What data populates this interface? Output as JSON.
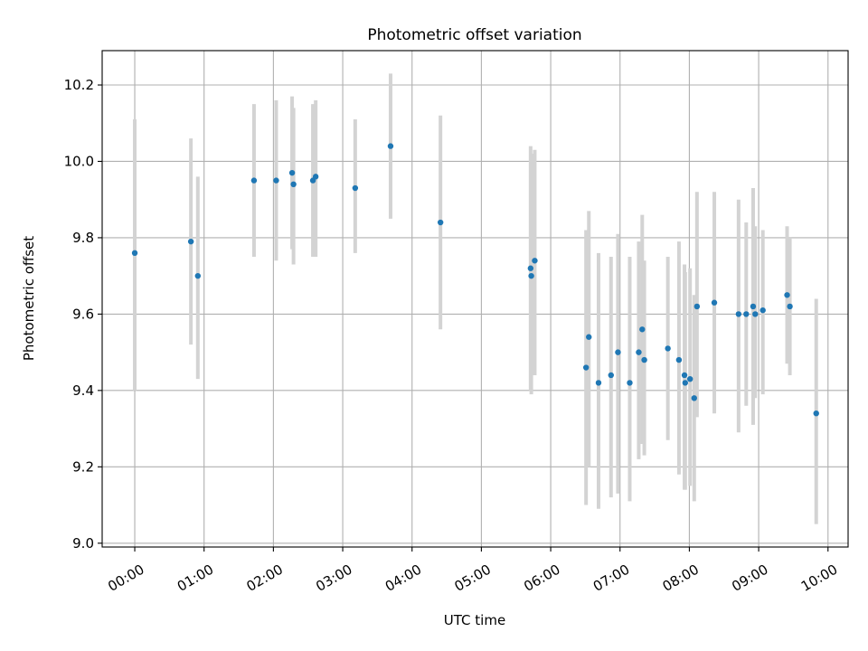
{
  "chart_data": {
    "type": "scatter",
    "title": "Photometric offset variation",
    "xlabel": "UTC time",
    "ylabel": "Photometric offset",
    "xlim": [
      -0.47,
      10.29
    ],
    "ylim": [
      8.99,
      10.29
    ],
    "grid": true,
    "x_ticks": [
      0,
      1,
      2,
      3,
      4,
      5,
      6,
      7,
      8,
      9,
      10
    ],
    "x_tick_labels": [
      "00:00",
      "01:00",
      "02:00",
      "03:00",
      "04:00",
      "05:00",
      "06:00",
      "07:00",
      "08:00",
      "09:00",
      "10:00"
    ],
    "y_ticks": [
      9.0,
      9.2,
      9.4,
      9.6,
      9.8,
      10.0,
      10.2
    ],
    "y_tick_labels": [
      "9.0",
      "9.2",
      "9.4",
      "9.6",
      "9.8",
      "10.0",
      "10.2"
    ],
    "marker_color": "#1f77b4",
    "errorbar_color": "#d3d3d3",
    "series": [
      {
        "x": [
          0.0,
          0.81,
          0.91,
          1.72,
          2.04,
          2.27,
          2.29,
          2.57,
          2.61,
          3.18,
          3.69,
          4.41,
          5.71,
          5.72,
          5.77,
          6.51,
          6.55,
          6.69,
          6.87,
          6.97,
          7.14,
          7.27,
          7.32,
          7.35,
          7.69,
          7.85,
          7.93,
          7.94,
          8.01,
          8.07,
          8.11,
          8.36,
          8.71,
          8.82,
          8.92,
          8.95,
          9.06,
          9.41,
          9.45,
          9.83
        ],
        "y": [
          9.76,
          9.79,
          9.7,
          9.95,
          9.95,
          9.97,
          9.94,
          9.95,
          9.96,
          9.93,
          10.04,
          9.84,
          9.72,
          9.7,
          9.74,
          9.46,
          9.54,
          9.42,
          9.44,
          9.5,
          9.42,
          9.5,
          9.56,
          9.48,
          9.51,
          9.48,
          9.44,
          9.42,
          9.43,
          9.38,
          9.62,
          9.63,
          9.6,
          9.6,
          9.62,
          9.6,
          9.61,
          9.65,
          9.62,
          9.34
        ],
        "y_low": [
          9.4,
          9.52,
          9.43,
          9.75,
          9.74,
          9.77,
          9.73,
          9.75,
          9.75,
          9.76,
          9.85,
          9.56,
          9.4,
          9.39,
          9.44,
          9.1,
          9.2,
          9.09,
          9.12,
          9.13,
          9.11,
          9.22,
          9.26,
          9.23,
          9.27,
          9.18,
          9.14,
          9.14,
          9.15,
          9.11,
          9.33,
          9.34,
          9.29,
          9.36,
          9.31,
          9.38,
          9.39,
          9.47,
          9.44,
          9.05
        ],
        "y_high": [
          10.11,
          10.06,
          9.96,
          10.15,
          10.16,
          10.17,
          10.14,
          10.15,
          10.16,
          10.11,
          10.23,
          10.12,
          10.04,
          10.02,
          10.03,
          9.82,
          9.87,
          9.76,
          9.75,
          9.81,
          9.75,
          9.79,
          9.86,
          9.74,
          9.75,
          9.79,
          9.73,
          9.71,
          9.72,
          9.65,
          9.92,
          9.92,
          9.9,
          9.84,
          9.93,
          9.83,
          9.82,
          9.83,
          9.8,
          9.64
        ]
      }
    ]
  }
}
